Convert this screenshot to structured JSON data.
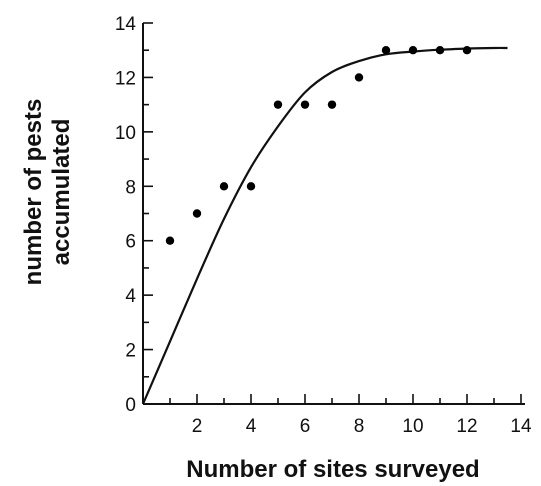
{
  "chart_data": {
    "type": "scatter",
    "title": "",
    "xlabel": "Number of sites surveyed",
    "ylabel_lines": [
      "number of pests",
      "accumulated"
    ],
    "xlim": [
      0,
      14
    ],
    "ylim": [
      0,
      14
    ],
    "x_ticks": [
      2,
      4,
      6,
      8,
      10,
      12,
      14
    ],
    "y_ticks": [
      0,
      2,
      4,
      6,
      8,
      10,
      12,
      14
    ],
    "grid": false,
    "legend": "none",
    "series": [
      {
        "kind": "points",
        "x": [
          1,
          2,
          3,
          4,
          5,
          6,
          7,
          8,
          9,
          10,
          11,
          12
        ],
        "y": [
          6,
          7,
          8,
          8,
          11,
          11,
          11,
          12,
          13,
          13,
          13,
          13
        ]
      },
      {
        "kind": "fitted-curve",
        "x": [
          0,
          1,
          2,
          3,
          4,
          5,
          6,
          7,
          8,
          9,
          10,
          11,
          12,
          13,
          13.5
        ],
        "y": [
          0,
          2.3,
          4.6,
          6.8,
          8.7,
          10.2,
          11.45,
          12.2,
          12.6,
          12.85,
          12.95,
          13.02,
          13.06,
          13.08,
          13.08
        ]
      }
    ],
    "colors": {
      "axis": "#111111",
      "points": "#000000",
      "curve": "#111111"
    }
  }
}
